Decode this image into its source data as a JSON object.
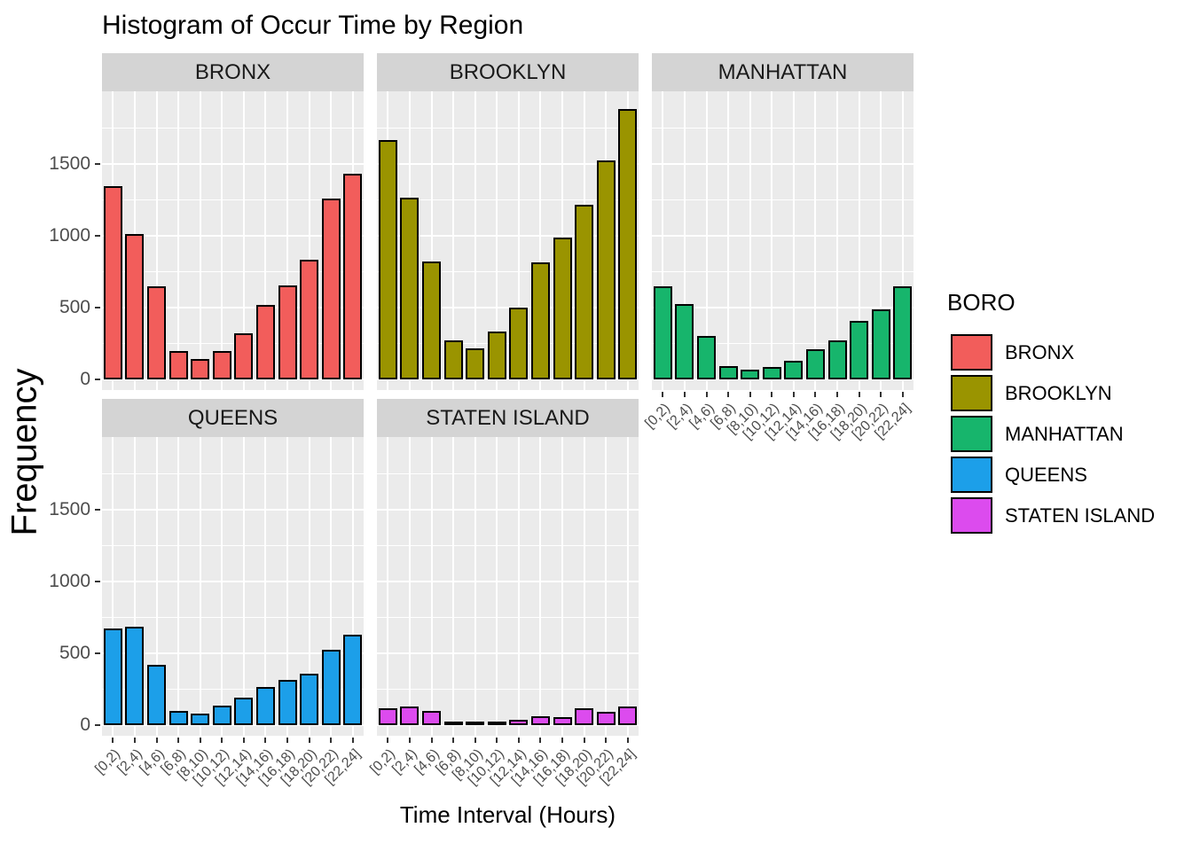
{
  "chart_data": {
    "type": "bar",
    "title": "Histogram of Occur Time by Region",
    "xlabel": "Time Interval (Hours)",
    "ylabel": "Frequency",
    "categories": [
      "[0,2)",
      "[2,4)",
      "[4,6)",
      "[6,8)",
      "[8,10)",
      "[10,12)",
      "[12,14)",
      "[14,16)",
      "[16,18)",
      "[18,20)",
      "[20,22)",
      "[22,24]"
    ],
    "y_tick_labels": [
      "0",
      "500",
      "1000",
      "1500"
    ],
    "y_major_breaks": [
      0,
      500,
      1000,
      1500
    ],
    "y_minor_breaks": [
      250,
      750,
      1250,
      1750
    ],
    "ylim": [
      0,
      1965
    ],
    "grid": "on",
    "legend_position": "right",
    "panel_background": "#ebebeb",
    "strip_background": "#d4d4d4",
    "facets": [
      {
        "name": "BRONX",
        "color": "#F25D5B",
        "values": [
          1335,
          1000,
          635,
          185,
          130,
          185,
          310,
          505,
          640,
          820,
          1245,
          1420
        ]
      },
      {
        "name": "BROOKLYN",
        "color": "#9A9400",
        "values": [
          1655,
          1255,
          810,
          260,
          205,
          320,
          485,
          800,
          975,
          1205,
          1515,
          1870
        ]
      },
      {
        "name": "MANHATTAN",
        "color": "#17B56C",
        "values": [
          635,
          515,
          290,
          80,
          55,
          75,
          115,
          200,
          260,
          395,
          475,
          635
        ]
      },
      {
        "name": "QUEENS",
        "color": "#1C9FE9",
        "values": [
          660,
          675,
          405,
          85,
          65,
          125,
          180,
          255,
          305,
          345,
          510,
          615
        ]
      },
      {
        "name": "STATEN ISLAND",
        "color": "#DC4BEE",
        "values": [
          105,
          120,
          85,
          8,
          6,
          12,
          25,
          50,
          45,
          105,
          80,
          115
        ]
      }
    ],
    "legend": {
      "title": "BORO",
      "items": [
        {
          "label": "BRONX",
          "color": "#F25D5B"
        },
        {
          "label": "BROOKLYN",
          "color": "#9A9400"
        },
        {
          "label": "MANHATTAN",
          "color": "#17B56C"
        },
        {
          "label": "QUEENS",
          "color": "#1C9FE9"
        },
        {
          "label": "STATEN ISLAND",
          "color": "#DC4BEE"
        }
      ]
    }
  }
}
